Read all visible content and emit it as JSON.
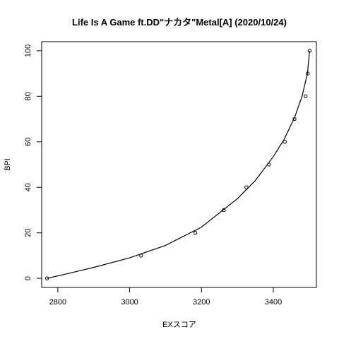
{
  "chart_data": {
    "type": "scatter",
    "title": "Life Is A Game ft.DD\"ナカタ\"Metal[A] (2020/10/24)",
    "xlabel": "EXスコア",
    "ylabel": "BPI",
    "xlim": [
      2755,
      3520
    ],
    "ylim": [
      -4,
      104
    ],
    "xticks": [
      2800,
      3000,
      3200,
      3400
    ],
    "yticks": [
      0,
      20,
      40,
      60,
      80,
      100
    ],
    "grid": false,
    "legend": "none",
    "series": [
      {
        "points": [
          {
            "x": 2770,
            "y": 0
          },
          {
            "x": 3032,
            "y": 10
          },
          {
            "x": 3183,
            "y": 20
          },
          {
            "x": 3262,
            "y": 30
          },
          {
            "x": 3325,
            "y": 40
          },
          {
            "x": 3388,
            "y": 50
          },
          {
            "x": 3432,
            "y": 60
          },
          {
            "x": 3459,
            "y": 70
          },
          {
            "x": 3490,
            "y": 80
          },
          {
            "x": 3496,
            "y": 90
          },
          {
            "x": 3501,
            "y": 100
          }
        ]
      }
    ],
    "curve": [
      {
        "x": 2770,
        "y": 0
      },
      {
        "x": 2820,
        "y": 1.8
      },
      {
        "x": 2900,
        "y": 4.8
      },
      {
        "x": 3000,
        "y": 9.0
      },
      {
        "x": 3100,
        "y": 14.5
      },
      {
        "x": 3200,
        "y": 22.5
      },
      {
        "x": 3300,
        "y": 35.0
      },
      {
        "x": 3350,
        "y": 43.0
      },
      {
        "x": 3400,
        "y": 53.5
      },
      {
        "x": 3430,
        "y": 61.0
      },
      {
        "x": 3460,
        "y": 71.0
      },
      {
        "x": 3480,
        "y": 80.0
      },
      {
        "x": 3495,
        "y": 90.0
      },
      {
        "x": 3501,
        "y": 100.0
      }
    ]
  }
}
